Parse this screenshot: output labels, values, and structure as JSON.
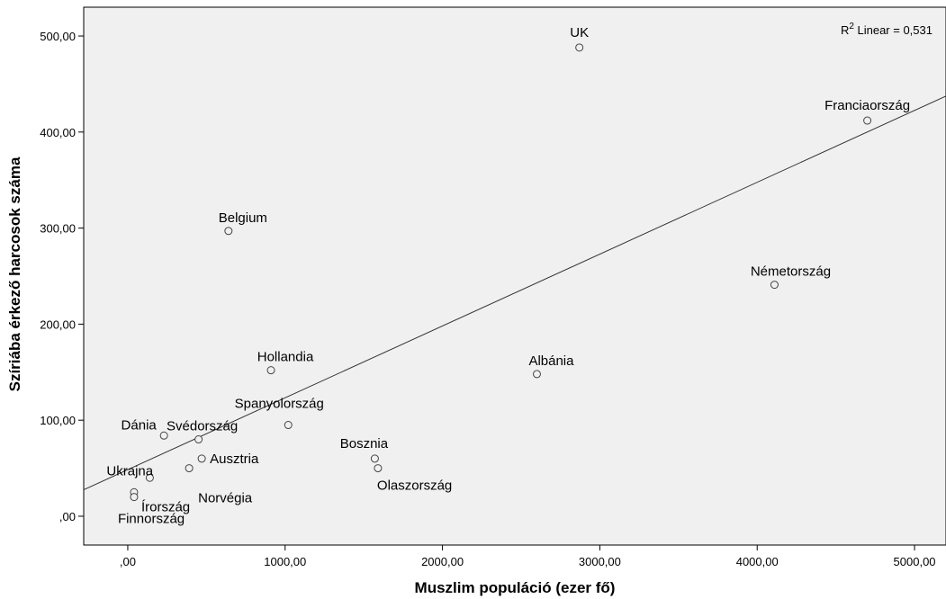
{
  "chart_data": {
    "type": "scatter",
    "xlabel": "Muszlim populáció (ezer fő)",
    "ylabel": "Szíriába érkező harcosok száma",
    "xlim": [
      -280,
      5200
    ],
    "ylim": [
      -30,
      530
    ],
    "x_ticks": [
      0,
      1000,
      2000,
      3000,
      4000,
      5000
    ],
    "x_tick_labels": [
      ",00",
      "1000,00",
      "2000,00",
      "3000,00",
      "4000,00",
      "5000,00"
    ],
    "y_ticks": [
      0,
      100,
      200,
      300,
      400,
      500
    ],
    "y_tick_labels": [
      ",00",
      "100,00",
      "200,00",
      "300,00",
      "400,00",
      "500,00"
    ],
    "fit_line": {
      "slope": 0.0748,
      "intercept": 48.5
    },
    "r2_prefix": "R",
    "r2_sup": "2",
    "r2_text": " Linear = 0,531",
    "grid": false,
    "points": [
      {
        "label": "UK",
        "x": 2870,
        "y": 488
      },
      {
        "label": "Franciaország",
        "x": 4700,
        "y": 412
      },
      {
        "label": "Belgium",
        "x": 640,
        "y": 297
      },
      {
        "label": "Németország",
        "x": 4110,
        "y": 241
      },
      {
        "label": "Hollandia",
        "x": 910,
        "y": 152
      },
      {
        "label": "Albánia",
        "x": 2600,
        "y": 148
      },
      {
        "label": "Spanyolország",
        "x": 1020,
        "y": 95
      },
      {
        "label": "Dánia",
        "x": 230,
        "y": 84
      },
      {
        "label": "Svédország",
        "x": 450,
        "y": 80
      },
      {
        "label": "Bosznia",
        "x": 1570,
        "y": 60
      },
      {
        "label": "Ausztria",
        "x": 470,
        "y": 60
      },
      {
        "label": "Olaszország",
        "x": 1590,
        "y": 50
      },
      {
        "label": "Norvégia",
        "x": 390,
        "y": 50
      },
      {
        "label": "Ukrajna",
        "x": 140,
        "y": 40
      },
      {
        "label": "Írország",
        "x": 40,
        "y": 25
      },
      {
        "label": "Finnország",
        "x": 40,
        "y": 20
      }
    ]
  }
}
